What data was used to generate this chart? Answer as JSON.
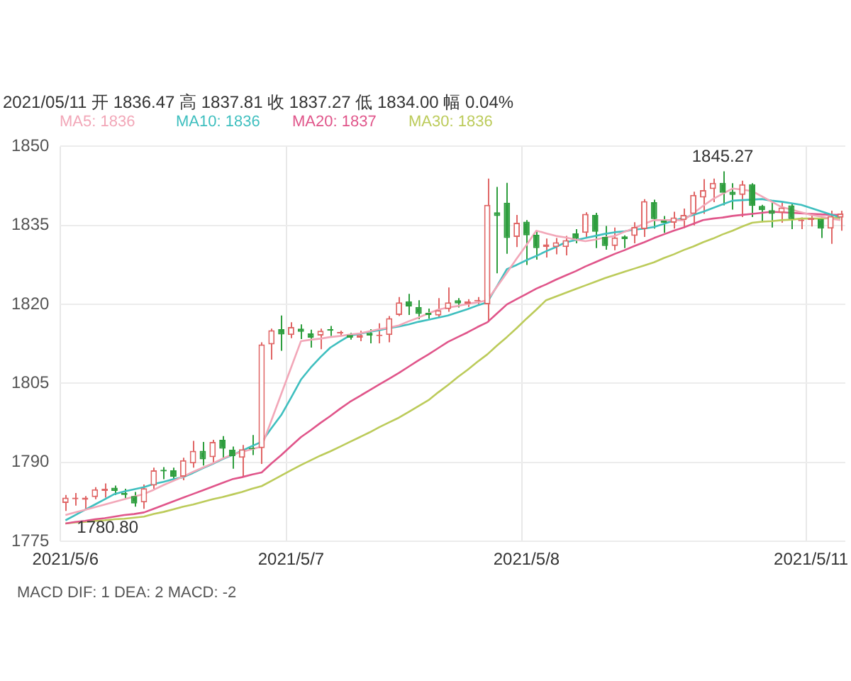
{
  "chart_data": {
    "type": "candlestick",
    "subtitle": "2021/05/11  开 1836.47  高 1837.81  收 1837.27  低 1834.00  幅 0.04%",
    "categories": [
      "2021/5/6",
      null,
      null,
      null,
      null,
      null,
      null,
      null,
      null,
      null,
      null,
      null,
      null,
      null,
      null,
      null,
      null,
      null,
      null,
      null,
      null,
      null,
      null,
      "2021/5/7",
      null,
      null,
      null,
      null,
      null,
      null,
      null,
      null,
      null,
      null,
      null,
      null,
      null,
      null,
      null,
      null,
      null,
      null,
      null,
      null,
      null,
      null,
      null,
      "2021/5/8",
      null,
      null,
      null,
      null,
      null,
      null,
      null,
      null,
      null,
      null,
      null,
      null,
      null,
      null,
      null,
      null,
      null,
      null,
      null,
      null,
      null,
      null,
      null,
      null,
      null,
      null,
      null,
      null,
      "2021/5/11",
      null,
      null,
      null
    ],
    "ohlc": [
      [
        1782.3,
        1783.8,
        1780.8,
        1783.3
      ],
      [
        1783.0,
        1784.2,
        1781.8,
        1783.3
      ],
      [
        1782.9,
        1783.6,
        1781.2,
        1783.3
      ],
      [
        1783.4,
        1785.3,
        1783.0,
        1784.9
      ],
      [
        1784.6,
        1786.0,
        1783.3,
        1785.0
      ],
      [
        1785.2,
        1785.6,
        1783.8,
        1784.6
      ],
      [
        1784.2,
        1785.0,
        1783.0,
        1783.8
      ],
      [
        1783.6,
        1784.4,
        1781.6,
        1782.2
      ],
      [
        1782.4,
        1785.8,
        1781.2,
        1785.1
      ],
      [
        1785.6,
        1789.0,
        1785.0,
        1788.5
      ],
      [
        1788.6,
        1789.1,
        1786.8,
        1788.3
      ],
      [
        1788.5,
        1789.0,
        1786.7,
        1787.3
      ],
      [
        1787.3,
        1790.9,
        1786.6,
        1790.4
      ],
      [
        1789.8,
        1794.1,
        1789.0,
        1792.2
      ],
      [
        1792.2,
        1793.9,
        1789.4,
        1790.6
      ],
      [
        1791.0,
        1794.3,
        1789.7,
        1793.9
      ],
      [
        1794.3,
        1795.0,
        1790.8,
        1792.6
      ],
      [
        1792.4,
        1793.0,
        1788.8,
        1791.2
      ],
      [
        1790.9,
        1793.3,
        1787.2,
        1792.5
      ],
      [
        1792.6,
        1795.2,
        1791.4,
        1792.5
      ],
      [
        1792.7,
        1812.8,
        1789.7,
        1812.4
      ],
      [
        1812.4,
        1815.4,
        1809.5,
        1815.1
      ],
      [
        1815.3,
        1817.9,
        1811.2,
        1814.3
      ],
      [
        1814.2,
        1816.6,
        1813.6,
        1815.7
      ],
      [
        1815.4,
        1816.2,
        1813.4,
        1814.8
      ],
      [
        1814.5,
        1815.2,
        1811.8,
        1813.7
      ],
      [
        1814.1,
        1815.4,
        1811.5,
        1815.0
      ],
      [
        1815.3,
        1815.9,
        1814.0,
        1815.0
      ],
      [
        1814.5,
        1815.0,
        1814.0,
        1814.6
      ],
      [
        1814.2,
        1814.6,
        1813.3,
        1813.7
      ],
      [
        1813.7,
        1815.0,
        1813.0,
        1814.2
      ],
      [
        1814.6,
        1815.3,
        1812.6,
        1814.1
      ],
      [
        1814.0,
        1816.4,
        1812.6,
        1814.1
      ],
      [
        1814.2,
        1817.8,
        1812.8,
        1817.4
      ],
      [
        1818.0,
        1821.4,
        1817.8,
        1820.4
      ],
      [
        1820.6,
        1822.0,
        1818.0,
        1819.6
      ],
      [
        1819.5,
        1820.8,
        1817.2,
        1818.2
      ],
      [
        1818.4,
        1819.2,
        1817.3,
        1818.0
      ],
      [
        1817.9,
        1821.2,
        1817.5,
        1818.9
      ],
      [
        1819.1,
        1823.2,
        1818.6,
        1820.4
      ],
      [
        1820.8,
        1821.2,
        1819.4,
        1820.2
      ],
      [
        1820.1,
        1821.0,
        1819.5,
        1820.6
      ],
      [
        1820.6,
        1821.4,
        1819.8,
        1820.8
      ],
      [
        1820.0,
        1843.9,
        1816.6,
        1838.9
      ],
      [
        1837.5,
        1842.3,
        1825.9,
        1836.8
      ],
      [
        1839.3,
        1843.1,
        1829.6,
        1832.6
      ],
      [
        1832.8,
        1837.0,
        1830.9,
        1835.5
      ],
      [
        1835.7,
        1836.0,
        1827.5,
        1833.1
      ],
      [
        1833.2,
        1834.0,
        1828.5,
        1830.7
      ],
      [
        1830.9,
        1832.5,
        1828.9,
        1831.4
      ],
      [
        1830.9,
        1832.6,
        1829.5,
        1831.8
      ],
      [
        1830.9,
        1833.0,
        1829.3,
        1832.2
      ],
      [
        1833.5,
        1834.3,
        1831.6,
        1832.5
      ],
      [
        1833.6,
        1837.5,
        1832.8,
        1837.2
      ],
      [
        1837.0,
        1837.4,
        1830.7,
        1833.8
      ],
      [
        1832.8,
        1834.9,
        1830.4,
        1831.1
      ],
      [
        1831.1,
        1834.6,
        1830.3,
        1832.7
      ],
      [
        1832.9,
        1833.1,
        1830.7,
        1832.4
      ],
      [
        1833.0,
        1835.6,
        1831.6,
        1834.7
      ],
      [
        1834.3,
        1840.0,
        1832.8,
        1839.6
      ],
      [
        1839.4,
        1839.9,
        1834.4,
        1836.2
      ],
      [
        1835.9,
        1836.8,
        1833.6,
        1835.5
      ],
      [
        1835.5,
        1837.6,
        1834.4,
        1836.5
      ],
      [
        1836.0,
        1838.2,
        1834.5,
        1837.0
      ],
      [
        1837.2,
        1841.4,
        1835.0,
        1840.8
      ],
      [
        1840.3,
        1843.8,
        1837.2,
        1841.7
      ],
      [
        1841.9,
        1843.9,
        1839.4,
        1843.1
      ],
      [
        1843.1,
        1845.27,
        1838.8,
        1841.2
      ],
      [
        1841.4,
        1843.0,
        1838.0,
        1840.8
      ],
      [
        1840.8,
        1843.5,
        1836.6,
        1842.8
      ],
      [
        1842.8,
        1843.0,
        1836.6,
        1838.7
      ],
      [
        1838.7,
        1838.9,
        1835.6,
        1837.9
      ],
      [
        1837.9,
        1839.3,
        1834.6,
        1837.2
      ],
      [
        1837.4,
        1839.3,
        1835.5,
        1838.4
      ],
      [
        1838.8,
        1839.2,
        1834.3,
        1836.2
      ],
      [
        1835.8,
        1836.5,
        1834.3,
        1836.1
      ],
      [
        1836.0,
        1836.9,
        1834.8,
        1836.4
      ],
      [
        1836.2,
        1836.5,
        1832.6,
        1834.4
      ],
      [
        1834.4,
        1837.8,
        1831.5,
        1836.8
      ],
      [
        1836.47,
        1837.81,
        1834.0,
        1837.27
      ]
    ],
    "series": [
      {
        "name": "MA5: 1836",
        "type": "line",
        "color": "#f2a7b8",
        "values": [
          1780.0,
          1780.5,
          1781.0,
          1781.5,
          1782.0,
          1782.5,
          1783.0,
          1783.5,
          1784.0,
          1784.8,
          1785.7,
          1786.5,
          1787.3,
          1788.2,
          1789.0,
          1789.8,
          1790.7,
          1791.5,
          1792.0,
          1792.5,
          1793.0,
          1798.0,
          1803.0,
          1808.0,
          1813.0,
          1813.3,
          1813.5,
          1813.8,
          1814.0,
          1814.3,
          1814.5,
          1814.9,
          1815.3,
          1815.6,
          1816.0,
          1816.8,
          1817.5,
          1818.3,
          1819.0,
          1819.4,
          1819.7,
          1820.1,
          1820.4,
          1820.8,
          1823.4,
          1826.0,
          1828.7,
          1831.3,
          1834.0,
          1833.5,
          1833.0,
          1832.7,
          1832.3,
          1832.0,
          1832.3,
          1832.7,
          1833.0,
          1833.8,
          1834.5,
          1835.3,
          1836.0,
          1836.0,
          1836.0,
          1836.0,
          1837.3,
          1838.7,
          1840.0,
          1841.0,
          1842.0,
          1841.8,
          1841.5,
          1840.5,
          1839.5,
          1838.5,
          1838.0,
          1837.5,
          1837.0,
          1836.7,
          1836.3,
          1836.0
        ]
      },
      {
        "name": "MA10: 1836",
        "type": "line",
        "color": "#3fbfbf",
        "values": [
          1779.0,
          1780.0,
          1781.0,
          1782.0,
          1783.0,
          1784.0,
          1784.5,
          1784.9,
          1785.3,
          1785.9,
          1786.3,
          1786.8,
          1787.2,
          1788.0,
          1788.9,
          1789.7,
          1790.6,
          1791.4,
          1792.2,
          1793.1,
          1793.9,
          1796.5,
          1799.0,
          1802.3,
          1805.7,
          1808.0,
          1810.0,
          1811.8,
          1813.0,
          1814.1,
          1814.4,
          1814.8,
          1815.1,
          1815.5,
          1815.8,
          1816.2,
          1816.7,
          1817.1,
          1817.5,
          1817.9,
          1818.5,
          1819.1,
          1819.8,
          1820.4,
          1823.5,
          1826.7,
          1827.5,
          1828.4,
          1829.2,
          1830.1,
          1830.9,
          1831.8,
          1832.2,
          1832.6,
          1833.0,
          1833.4,
          1833.7,
          1833.9,
          1834.2,
          1834.4,
          1834.7,
          1835.3,
          1835.9,
          1836.4,
          1837.0,
          1837.6,
          1838.3,
          1839.0,
          1839.7,
          1839.8,
          1839.9,
          1840.0,
          1839.7,
          1839.5,
          1839.2,
          1838.9,
          1838.3,
          1837.7,
          1837.1,
          1836.5
        ]
      },
      {
        "name": "MA20: 1837",
        "type": "line",
        "color": "#e0558a",
        "values": [
          1778.4,
          1778.7,
          1778.9,
          1779.2,
          1779.4,
          1779.7,
          1780.0,
          1780.2,
          1780.5,
          1781.2,
          1781.9,
          1782.6,
          1783.3,
          1784.0,
          1784.7,
          1785.4,
          1786.1,
          1786.8,
          1787.2,
          1787.7,
          1788.1,
          1789.8,
          1791.4,
          1793.1,
          1794.8,
          1796.1,
          1797.5,
          1798.8,
          1800.2,
          1801.5,
          1802.6,
          1803.7,
          1804.8,
          1805.9,
          1807.0,
          1808.2,
          1809.4,
          1810.5,
          1811.7,
          1812.9,
          1813.8,
          1814.7,
          1815.7,
          1816.6,
          1818.3,
          1820.0,
          1821.0,
          1822.0,
          1823.0,
          1823.8,
          1824.7,
          1825.5,
          1826.3,
          1827.2,
          1828.0,
          1828.8,
          1829.6,
          1830.3,
          1831.1,
          1831.8,
          1832.6,
          1833.3,
          1834.0,
          1834.6,
          1835.3,
          1836.0,
          1836.3,
          1836.5,
          1836.8,
          1837.0,
          1837.2,
          1837.4,
          1837.6,
          1837.5,
          1837.4,
          1837.3,
          1837.2,
          1837.1,
          1837.0,
          1837.0
        ]
      },
      {
        "name": "MA30: 1836",
        "type": "line",
        "color": "#bccb5a",
        "values": [
          1778.4,
          1778.6,
          1778.7,
          1778.9,
          1779.0,
          1779.2,
          1779.3,
          1779.5,
          1779.7,
          1780.2,
          1780.6,
          1781.1,
          1781.6,
          1782.0,
          1782.5,
          1783.0,
          1783.4,
          1783.9,
          1784.4,
          1785.0,
          1785.5,
          1786.5,
          1787.5,
          1788.5,
          1789.5,
          1790.4,
          1791.3,
          1792.1,
          1793.0,
          1793.9,
          1794.8,
          1795.7,
          1796.7,
          1797.6,
          1798.5,
          1799.6,
          1800.7,
          1801.8,
          1803.3,
          1804.7,
          1806.2,
          1807.6,
          1809.1,
          1810.5,
          1812.2,
          1813.8,
          1815.5,
          1817.3,
          1819.0,
          1820.8,
          1821.5,
          1822.2,
          1822.9,
          1823.6,
          1824.3,
          1825.0,
          1825.6,
          1826.2,
          1826.8,
          1827.4,
          1828.0,
          1828.8,
          1829.5,
          1830.3,
          1831.0,
          1831.8,
          1832.5,
          1833.3,
          1834.0,
          1834.8,
          1835.5,
          1835.7,
          1835.8,
          1836.0,
          1836.1,
          1836.3,
          1836.3,
          1836.3,
          1836.4,
          1836.4
        ]
      }
    ],
    "ylim": [
      1775,
      1850
    ],
    "yticks": [
      1775,
      1790,
      1805,
      1820,
      1835,
      1850
    ],
    "grid": true,
    "legend": "top",
    "marker": "none",
    "line_style": "solid",
    "annotations": [
      {
        "text": "1845.27",
        "y": 1845.27
      },
      {
        "text": "1780.80",
        "y": 1780.8
      },
      "MACD  DIF: 1  DEA: 2  MACD: -2"
    ]
  }
}
